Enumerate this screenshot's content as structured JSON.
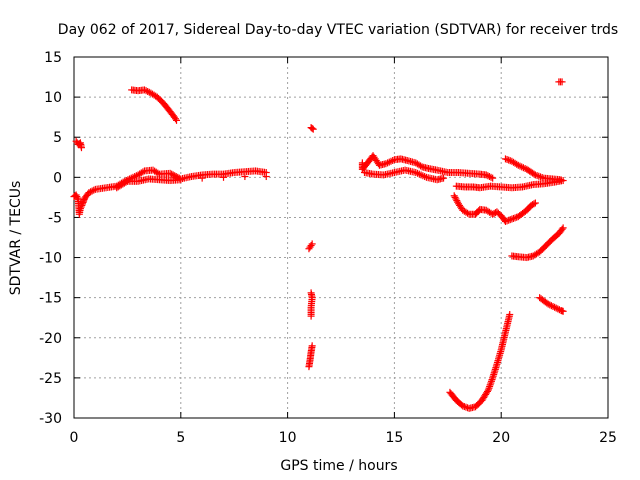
{
  "chart_data": {
    "type": "scatter",
    "title": "Day 062 of 2017, Sidereal Day-to-day VTEC variation (SDTVAR) for receiver trds",
    "xlabel": "GPS time / hours",
    "ylabel": "SDTVAR / TECUs",
    "xlim": [
      0,
      25
    ],
    "ylim": [
      -30,
      15
    ],
    "xticks": [
      0,
      5,
      10,
      15,
      20,
      25
    ],
    "yticks": [
      -30,
      -25,
      -20,
      -15,
      -10,
      -5,
      0,
      5,
      10,
      15
    ],
    "grid": true,
    "marker": "+",
    "color": "#ff0000",
    "series": [
      {
        "name": "trace-a",
        "points": [
          [
            0.0,
            -2.4
          ],
          [
            0.1,
            -2.2
          ],
          [
            0.2,
            -2.8
          ],
          [
            0.25,
            -4.6
          ],
          [
            0.3,
            -3.9
          ],
          [
            0.4,
            -3.3
          ],
          [
            0.5,
            -2.6
          ],
          [
            0.7,
            -1.9
          ],
          [
            1.0,
            -1.5
          ],
          [
            1.5,
            -1.3
          ],
          [
            2.0,
            -1.1
          ],
          [
            2.3,
            -0.6
          ],
          [
            2.6,
            -0.2
          ],
          [
            3.0,
            0.3
          ],
          [
            3.3,
            0.8
          ],
          [
            3.7,
            0.9
          ],
          [
            4.0,
            0.4
          ],
          [
            4.5,
            0.5
          ],
          [
            5.0,
            -0.2
          ],
          [
            5.5,
            0.1
          ],
          [
            6.0,
            0.3
          ],
          [
            6.5,
            0.4
          ],
          [
            7.0,
            0.4
          ],
          [
            7.5,
            0.6
          ],
          [
            8.0,
            0.7
          ],
          [
            8.5,
            0.8
          ],
          [
            9.0,
            0.6
          ]
        ]
      },
      {
        "name": "trace-a-low",
        "points": [
          [
            2.0,
            -1.3
          ],
          [
            2.5,
            -0.5
          ],
          [
            3.0,
            -0.5
          ],
          [
            3.5,
            -0.2
          ],
          [
            4.0,
            -0.3
          ],
          [
            4.5,
            -0.4
          ],
          [
            5.0,
            -0.3
          ],
          [
            6.0,
            -0.1
          ],
          [
            7.0,
            0.0
          ],
          [
            8.0,
            0.1
          ],
          [
            9.0,
            0.1
          ]
        ]
      },
      {
        "name": "trace-b",
        "points": [
          [
            0.1,
            4.5
          ],
          [
            0.2,
            4.1
          ],
          [
            0.3,
            4.3
          ],
          [
            0.35,
            3.7
          ]
        ]
      },
      {
        "name": "trace-c",
        "points": [
          [
            2.7,
            10.9
          ],
          [
            3.0,
            10.8
          ],
          [
            3.3,
            10.9
          ],
          [
            3.6,
            10.5
          ],
          [
            3.9,
            10.0
          ],
          [
            4.2,
            9.2
          ],
          [
            4.5,
            8.2
          ],
          [
            4.7,
            7.5
          ],
          [
            4.8,
            7.1
          ]
        ]
      },
      {
        "name": "trace-d",
        "points": [
          [
            11.1,
            6.2
          ],
          [
            11.2,
            6.0
          ],
          [
            11.0,
            -8.9
          ],
          [
            11.1,
            -8.5
          ],
          [
            11.15,
            -8.3
          ],
          [
            11.1,
            -14.4
          ],
          [
            11.15,
            -15.0
          ],
          [
            11.1,
            -16.2
          ],
          [
            11.1,
            -17.3
          ],
          [
            11.0,
            -23.6
          ],
          [
            11.05,
            -22.8
          ],
          [
            11.1,
            -21.8
          ],
          [
            11.15,
            -21.0
          ]
        ]
      },
      {
        "name": "trace-e",
        "points": [
          [
            13.5,
            1.8
          ],
          [
            13.5,
            1.0
          ],
          [
            13.8,
            2.0
          ],
          [
            14.0,
            2.7
          ],
          [
            14.3,
            1.5
          ],
          [
            14.6,
            1.7
          ],
          [
            15.0,
            2.2
          ],
          [
            15.3,
            2.3
          ],
          [
            15.6,
            2.1
          ],
          [
            16.0,
            1.8
          ],
          [
            16.3,
            1.3
          ],
          [
            16.6,
            1.1
          ],
          [
            17.0,
            0.9
          ],
          [
            17.5,
            0.6
          ],
          [
            18.0,
            0.6
          ],
          [
            18.5,
            0.5
          ],
          [
            19.0,
            0.4
          ],
          [
            19.3,
            0.3
          ],
          [
            19.6,
            -0.1
          ]
        ]
      },
      {
        "name": "trace-e-low",
        "points": [
          [
            13.6,
            0.6
          ],
          [
            14.0,
            0.4
          ],
          [
            14.5,
            0.3
          ],
          [
            15.0,
            0.6
          ],
          [
            15.5,
            0.9
          ],
          [
            16.0,
            0.6
          ],
          [
            16.5,
            0.0
          ],
          [
            17.0,
            -0.3
          ],
          [
            17.3,
            -0.1
          ]
        ]
      },
      {
        "name": "trace-f",
        "points": [
          [
            17.9,
            -1.1
          ],
          [
            18.3,
            -1.2
          ],
          [
            18.7,
            -1.2
          ],
          [
            19.0,
            -1.3
          ],
          [
            19.5,
            -1.1
          ],
          [
            20.0,
            -1.2
          ],
          [
            20.5,
            -1.3
          ],
          [
            21.0,
            -1.2
          ],
          [
            21.5,
            -0.9
          ],
          [
            22.0,
            -0.8
          ],
          [
            22.5,
            -0.6
          ],
          [
            22.9,
            -0.4
          ]
        ]
      },
      {
        "name": "trace-g",
        "points": [
          [
            20.2,
            2.3
          ],
          [
            20.5,
            2.0
          ],
          [
            20.8,
            1.5
          ],
          [
            21.2,
            1.0
          ],
          [
            21.6,
            0.3
          ],
          [
            22.0,
            -0.1
          ],
          [
            22.4,
            -0.2
          ],
          [
            22.8,
            -0.3
          ]
        ]
      },
      {
        "name": "trace-h",
        "points": [
          [
            17.8,
            -2.3
          ],
          [
            18.0,
            -3.3
          ],
          [
            18.2,
            -4.1
          ],
          [
            18.5,
            -4.6
          ],
          [
            18.8,
            -4.6
          ],
          [
            19.0,
            -4.0
          ],
          [
            19.3,
            -4.1
          ],
          [
            19.6,
            -4.6
          ],
          [
            19.8,
            -4.3
          ],
          [
            20.0,
            -4.8
          ],
          [
            20.2,
            -5.5
          ],
          [
            20.5,
            -5.2
          ],
          [
            20.8,
            -4.9
          ],
          [
            21.0,
            -4.5
          ],
          [
            21.2,
            -4.1
          ],
          [
            21.4,
            -3.5
          ],
          [
            21.6,
            -3.2
          ]
        ]
      },
      {
        "name": "trace-i",
        "points": [
          [
            20.5,
            -9.8
          ],
          [
            20.8,
            -9.9
          ],
          [
            21.2,
            -10.0
          ],
          [
            21.5,
            -9.8
          ],
          [
            21.8,
            -9.3
          ],
          [
            22.1,
            -8.5
          ],
          [
            22.4,
            -7.7
          ],
          [
            22.7,
            -7.0
          ],
          [
            22.9,
            -6.3
          ]
        ]
      },
      {
        "name": "trace-j",
        "points": [
          [
            21.8,
            -15.0
          ],
          [
            22.0,
            -15.4
          ],
          [
            22.2,
            -15.8
          ],
          [
            22.5,
            -16.2
          ],
          [
            22.8,
            -16.6
          ],
          [
            22.9,
            -16.7
          ]
        ]
      },
      {
        "name": "trace-k",
        "points": [
          [
            22.7,
            11.9
          ],
          [
            22.85,
            11.9
          ]
        ]
      },
      {
        "name": "trace-l",
        "points": [
          [
            17.6,
            -26.8
          ],
          [
            17.9,
            -27.8
          ],
          [
            18.2,
            -28.5
          ],
          [
            18.5,
            -28.8
          ],
          [
            18.8,
            -28.6
          ],
          [
            19.1,
            -27.8
          ],
          [
            19.4,
            -26.5
          ],
          [
            19.6,
            -25.0
          ],
          [
            19.8,
            -23.3
          ],
          [
            20.0,
            -21.5
          ],
          [
            20.2,
            -19.3
          ],
          [
            20.4,
            -17.1
          ]
        ]
      }
    ]
  }
}
